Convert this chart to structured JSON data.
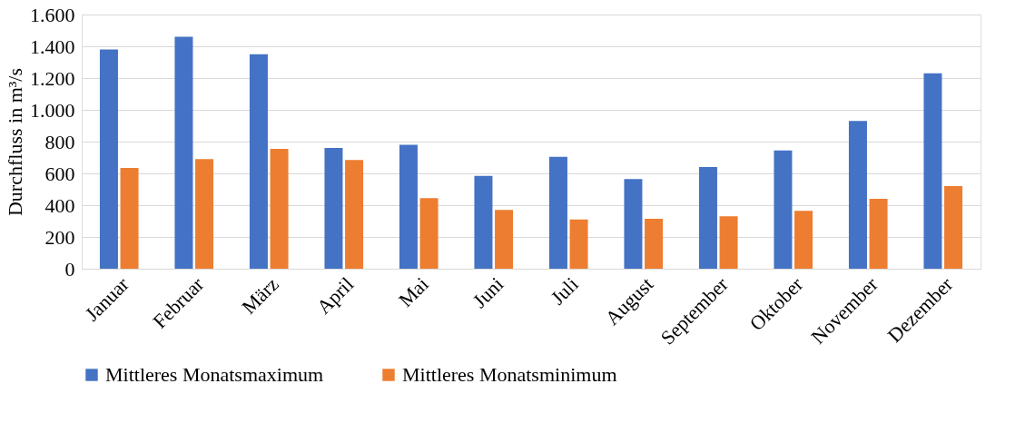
{
  "chart_data": {
    "type": "bar",
    "ylabel": "Durchfluss in m³/s",
    "categories": [
      "Januar",
      "Februar",
      "März",
      "April",
      "Mai",
      "Juni",
      "Juli",
      "August",
      "September",
      "Oktober",
      "November",
      "Dezember"
    ],
    "series": [
      {
        "name": "Mittleres Monatsmaximum",
        "color": "#4472c4",
        "values": [
          1380,
          1460,
          1350,
          760,
          780,
          585,
          705,
          565,
          640,
          745,
          930,
          1230
        ]
      },
      {
        "name": "Mittleres Monatsminimum",
        "color": "#ed7d31",
        "values": [
          635,
          690,
          755,
          685,
          445,
          370,
          310,
          315,
          330,
          365,
          440,
          520
        ]
      }
    ],
    "ylim": [
      0,
      1600
    ],
    "yticks": [
      0,
      200,
      400,
      600,
      800,
      {
        "value": 1000,
        "label": "1.000"
      },
      {
        "value": 1200,
        "label": "1.200"
      },
      {
        "value": 1400,
        "label": "1.400"
      },
      {
        "value": 1600,
        "label": "1.600"
      }
    ],
    "grid": "y",
    "legend": "bottom"
  }
}
